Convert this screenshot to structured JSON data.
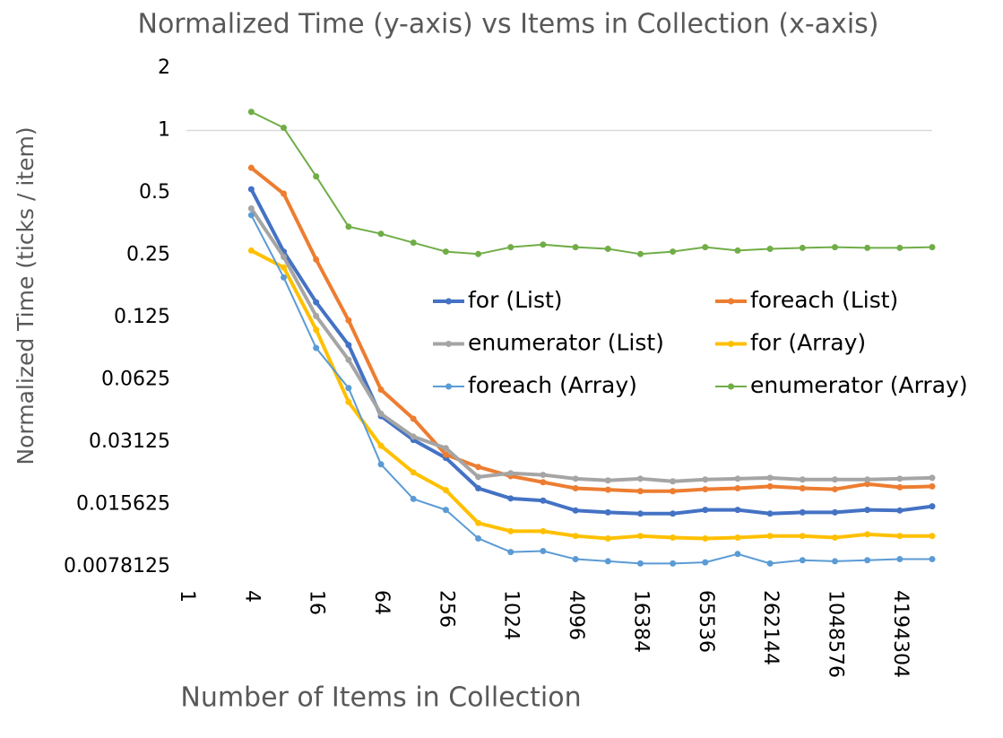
{
  "chart_data": {
    "type": "line",
    "title": "Normalized Time (y-axis) vs Items in Collection (x-axis)",
    "x_label": "Number of Items in Collection",
    "y_label": "Normalized Time (ticks / item)",
    "x_scale": "log2",
    "y_scale": "log2",
    "xlim": [
      1,
      8388608
    ],
    "xticks": [
      1,
      4,
      16,
      64,
      256,
      1024,
      4096,
      16384,
      65536,
      262144,
      1048576,
      4194304
    ],
    "ylim": [
      0.0078125,
      2
    ],
    "yticks": [
      0.0078125,
      0.015625,
      0.03125,
      0.0625,
      0.125,
      0.25,
      0.5,
      1,
      2
    ],
    "x_axis_crosses": 1,
    "x": [
      4,
      8,
      16,
      32,
      64,
      128,
      256,
      512,
      1024,
      2048,
      4096,
      8192,
      16384,
      32768,
      65536,
      131072,
      262144,
      524288,
      1048576,
      2097152,
      4194304,
      8388608
    ],
    "series": [
      {
        "name": "for (List)",
        "color": "#4472c4",
        "width": 4,
        "values": [
          0.52,
          0.26,
          0.148,
          0.092,
          0.0417,
          0.032,
          0.0262,
          0.0187,
          0.0167,
          0.0163,
          0.0146,
          0.0143,
          0.0141,
          0.0141,
          0.0147,
          0.0147,
          0.0141,
          0.0143,
          0.0143,
          0.0147,
          0.0146,
          0.0153
        ]
      },
      {
        "name": "foreach (List)",
        "color": "#ed7d31",
        "width": 4,
        "values": [
          0.66,
          0.495,
          0.238,
          0.121,
          0.056,
          0.0405,
          0.0272,
          0.0237,
          0.0214,
          0.02,
          0.0187,
          0.0184,
          0.0181,
          0.0181,
          0.0185,
          0.0187,
          0.0191,
          0.0187,
          0.0185,
          0.0196,
          0.0189,
          0.0191
        ]
      },
      {
        "name": "enumerator (List)",
        "color": "#a5a5a5",
        "width": 4,
        "values": [
          0.42,
          0.245,
          0.127,
          0.078,
          0.0428,
          0.0332,
          0.0292,
          0.0212,
          0.0221,
          0.0217,
          0.0208,
          0.0204,
          0.0208,
          0.0202,
          0.0206,
          0.0208,
          0.021,
          0.0206,
          0.0206,
          0.0206,
          0.0208,
          0.021
        ]
      },
      {
        "name": "for (Array)",
        "color": "#ffc000",
        "width": 4,
        "values": [
          0.263,
          0.218,
          0.109,
          0.0488,
          0.03,
          0.0223,
          0.0183,
          0.0127,
          0.0116,
          0.0116,
          0.011,
          0.0107,
          0.011,
          0.0108,
          0.0107,
          0.0108,
          0.011,
          0.011,
          0.0108,
          0.0112,
          0.011,
          0.011
        ]
      },
      {
        "name": "foreach (Array)",
        "color": "#5b9bd5",
        "width": 2,
        "values": [
          0.39,
          0.195,
          0.089,
          0.057,
          0.0244,
          0.0166,
          0.0147,
          0.0107,
          0.0092,
          0.0093,
          0.0085,
          0.0083,
          0.0081,
          0.0081,
          0.0082,
          0.009,
          0.0081,
          0.0084,
          0.0083,
          0.0084,
          0.0085,
          0.0085
        ]
      },
      {
        "name": "enumerator (Array)",
        "color": "#70ad47",
        "width": 2,
        "values": [
          1.23,
          1.03,
          0.6,
          0.343,
          0.317,
          0.287,
          0.26,
          0.253,
          0.273,
          0.281,
          0.273,
          0.268,
          0.253,
          0.26,
          0.273,
          0.263,
          0.268,
          0.271,
          0.273,
          0.271,
          0.271,
          0.273
        ]
      }
    ]
  }
}
